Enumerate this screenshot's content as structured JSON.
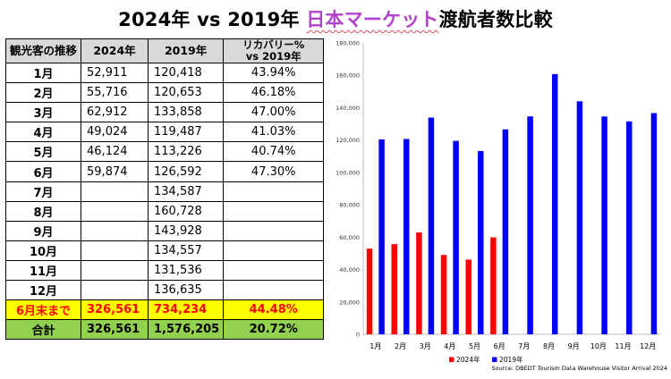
{
  "title": {
    "prefix": "2024年 vs 2019年 ",
    "highlight": "日本マーケット",
    "suffix": "渡航者数比較"
  },
  "table": {
    "headers": [
      "観光客の推移",
      "2024年",
      "2019年",
      "リカバリー%\nvs 2019年"
    ],
    "rows": [
      {
        "month": "1月",
        "y2024": "52,911",
        "y2019": "120,418",
        "pct": "43.94%"
      },
      {
        "month": "2月",
        "y2024": "55,716",
        "y2019": "120,653",
        "pct": "46.18%"
      },
      {
        "month": "3月",
        "y2024": "62,912",
        "y2019": "133,858",
        "pct": "47.00%"
      },
      {
        "month": "4月",
        "y2024": "49,024",
        "y2019": "119,487",
        "pct": "41.03%"
      },
      {
        "month": "5月",
        "y2024": "46,124",
        "y2019": "113,226",
        "pct": "40.74%"
      },
      {
        "month": "6月",
        "y2024": "59,874",
        "y2019": "126,592",
        "pct": "47.30%"
      },
      {
        "month": "7月",
        "y2024": "",
        "y2019": "134,587",
        "pct": ""
      },
      {
        "month": "8月",
        "y2024": "",
        "y2019": "160,728",
        "pct": ""
      },
      {
        "month": "9月",
        "y2024": "",
        "y2019": "143,928",
        "pct": ""
      },
      {
        "month": "10月",
        "y2024": "",
        "y2019": "134,557",
        "pct": ""
      },
      {
        "month": "11月",
        "y2024": "",
        "y2019": "131,536",
        "pct": ""
      },
      {
        "month": "12月",
        "y2024": "",
        "y2019": "136,635",
        "pct": ""
      }
    ],
    "subtotal": {
      "label": "6月末まで",
      "y2024": "326,561",
      "y2019": "734,234",
      "pct": "44.48%"
    },
    "total": {
      "label": "合計",
      "y2024": "326,561",
      "y2019": "1,576,205",
      "pct": "20.72%"
    }
  },
  "chart_data": {
    "type": "bar",
    "categories": [
      "1月",
      "2月",
      "3月",
      "4月",
      "5月",
      "6月",
      "7月",
      "8月",
      "9月",
      "10月",
      "11月",
      "12月"
    ],
    "series": [
      {
        "name": "2024年",
        "color": "#ff0000",
        "values": [
          52911,
          55716,
          62912,
          49024,
          46124,
          59874,
          null,
          null,
          null,
          null,
          null,
          null
        ]
      },
      {
        "name": "2019年",
        "color": "#0000ff",
        "values": [
          120418,
          120653,
          133858,
          119487,
          113226,
          126592,
          134587,
          160728,
          143928,
          134557,
          131536,
          136635
        ]
      }
    ],
    "ylim": [
      0,
      180000
    ],
    "yticks": [
      0,
      20000,
      40000,
      60000,
      80000,
      100000,
      120000,
      140000,
      160000,
      180000
    ],
    "ytick_labels": [
      "0",
      "20,000",
      "40,000",
      "60,000",
      "80,000",
      "100,000",
      "120,000",
      "140,000",
      "160,000",
      "180,000"
    ],
    "grid": false,
    "legend_position": "bottom",
    "source": "Source: DBEDT Tourism Data Warehouse Visitor Arrival 2024"
  }
}
